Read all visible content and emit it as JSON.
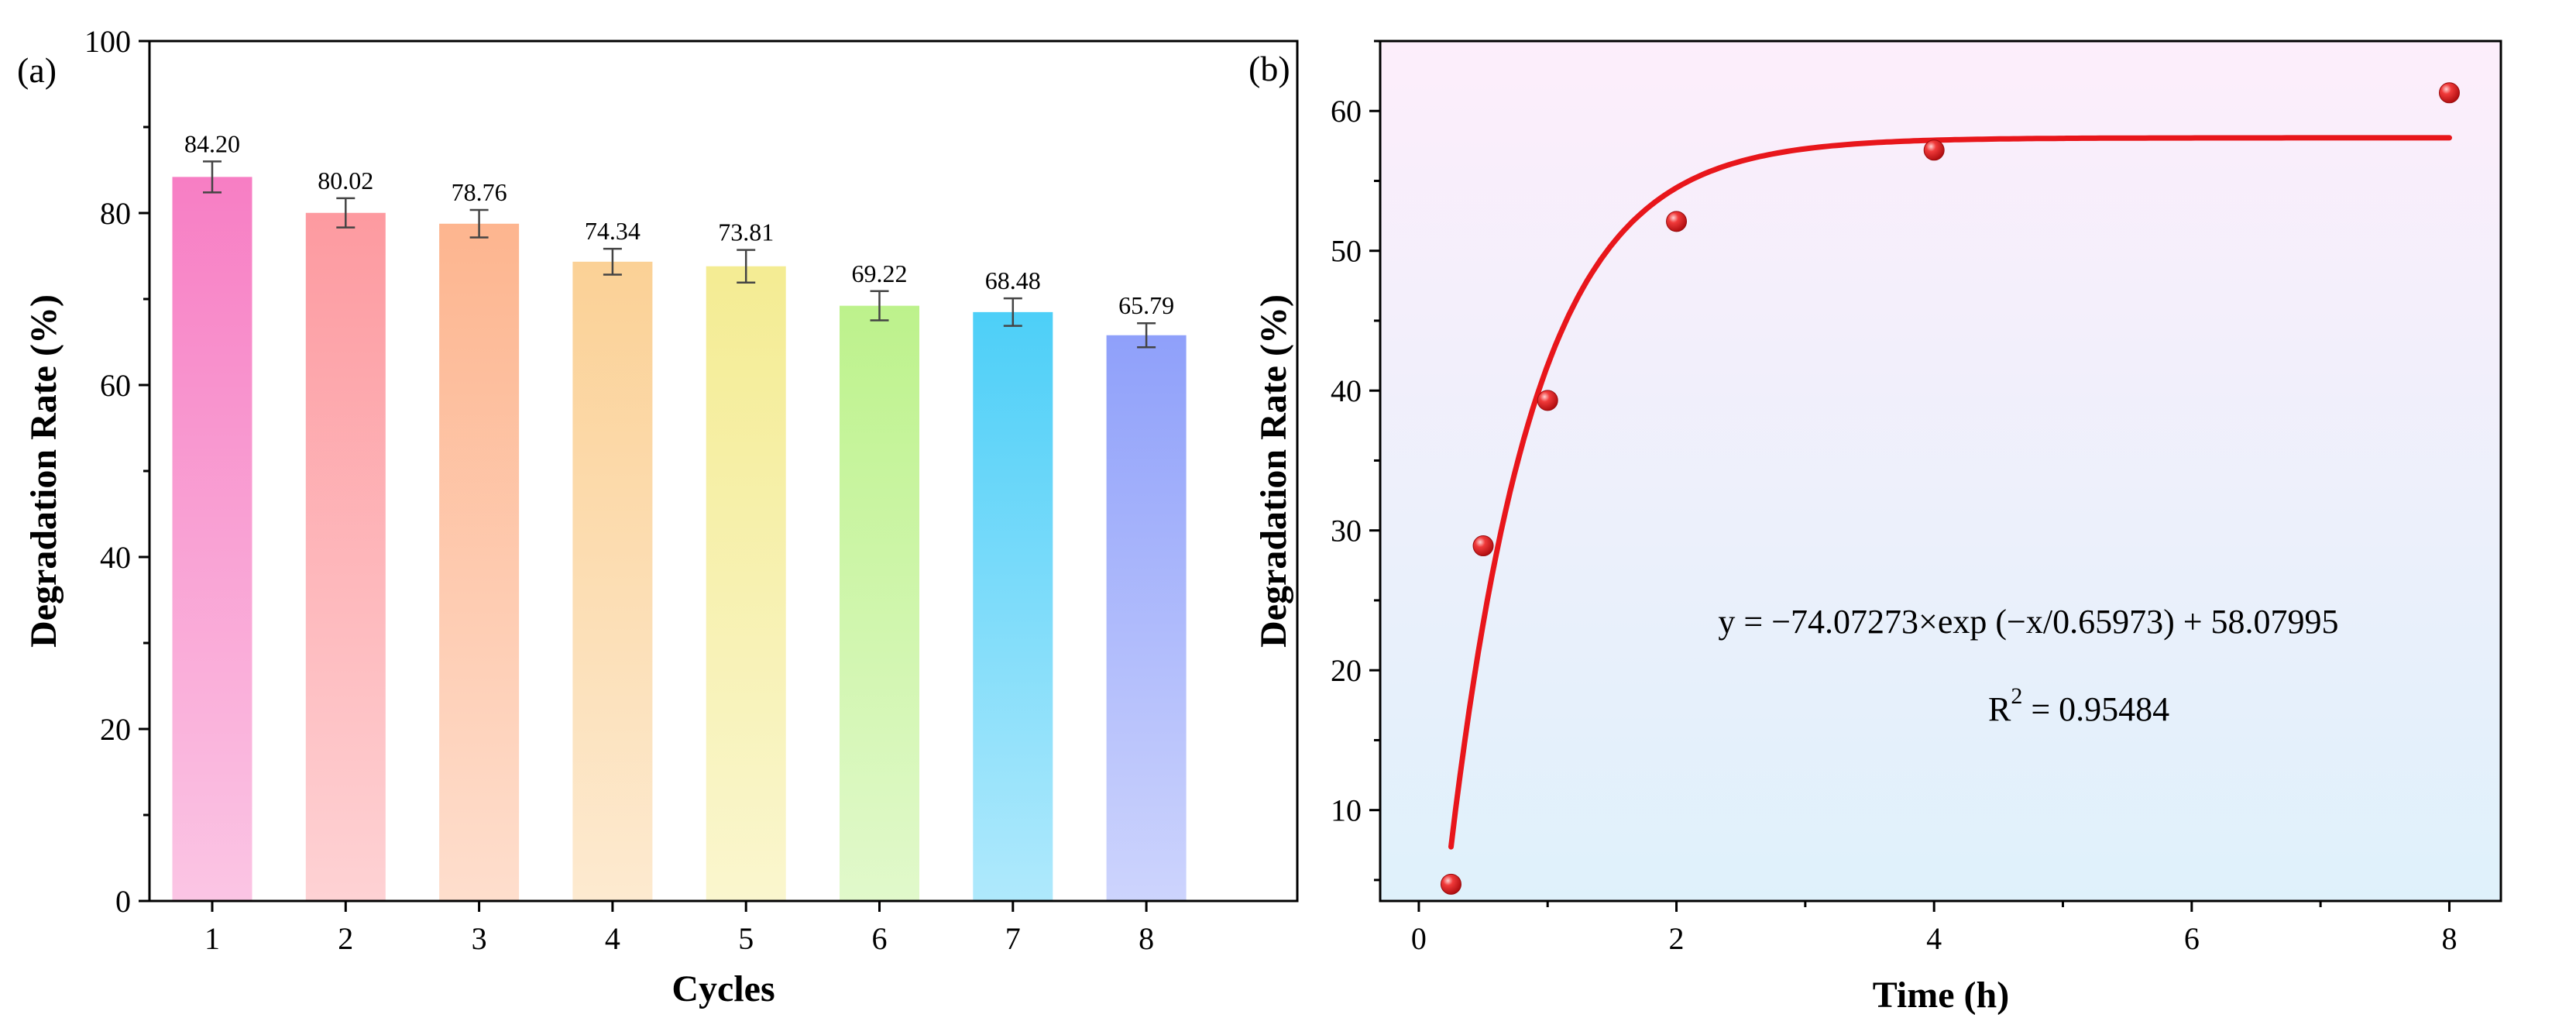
{
  "chart_data": [
    {
      "panel_label": "(a)",
      "type": "bar",
      "xlabel": "Cycles",
      "ylabel": "Degradation Rate (%)",
      "ylim": [
        0,
        100
      ],
      "yticks": [
        0,
        20,
        40,
        60,
        80,
        100
      ],
      "categories": [
        "1",
        "2",
        "3",
        "4",
        "5",
        "6",
        "7",
        "8"
      ],
      "values": [
        84.2,
        80.02,
        78.76,
        74.34,
        73.81,
        69.22,
        68.48,
        65.79
      ],
      "value_labels": [
        "84.20",
        "80.02",
        "78.76",
        "74.34",
        "73.81",
        "69.22",
        "68.48",
        "65.79"
      ],
      "errors": [
        1.8,
        1.7,
        1.6,
        1.5,
        1.9,
        1.7,
        1.6,
        1.4
      ],
      "colors": [
        "#f77ec4",
        "#fd9aa0",
        "#fdb58f",
        "#fbd196",
        "#f4ec93",
        "#bdf28c",
        "#4dcff8",
        "#8fa0fa"
      ]
    },
    {
      "panel_label": "(b)",
      "type": "scatter",
      "xlabel": "Time (h)",
      "ylabel": "Degradation Rate (%)",
      "xlim": [
        -0.3,
        8.4
      ],
      "ylim": [
        3.5,
        65
      ],
      "xticks": [
        0,
        2,
        4,
        6,
        8
      ],
      "yticks": [
        10,
        20,
        30,
        40,
        50,
        60
      ],
      "points": [
        {
          "x": 0.25,
          "y": 4.7
        },
        {
          "x": 0.5,
          "y": 28.9
        },
        {
          "x": 1,
          "y": 39.3
        },
        {
          "x": 2,
          "y": 52.1
        },
        {
          "x": 4,
          "y": 57.2
        },
        {
          "x": 8,
          "y": 61.3
        }
      ],
      "fit": {
        "A": -74.07273,
        "t": 0.65973,
        "y0": 58.07995,
        "x_from": 0.25,
        "x_to": 8
      },
      "equation": "y = −74.07273×exp (−x/0.65973) + 58.07995",
      "r2_base": "R",
      "r2_sup": "2",
      "r2_value": " = 0.95484",
      "point_color": "#e8161b",
      "line_color": "#e8161b"
    }
  ]
}
